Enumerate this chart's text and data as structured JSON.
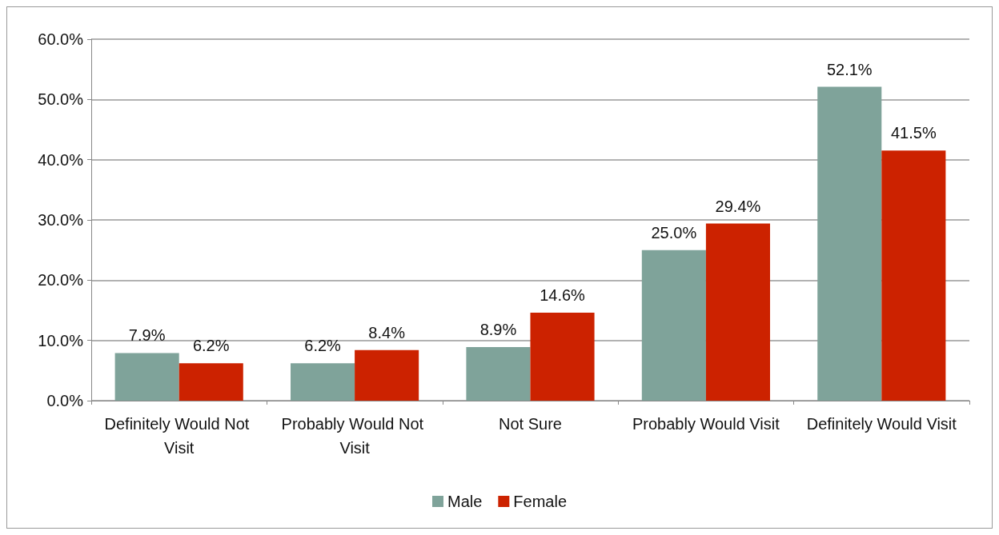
{
  "chart_data": {
    "type": "bar",
    "categories": [
      "Definitely Would Not Visit",
      "Probably Would Not Visit",
      "Not Sure",
      "Probably Would Visit",
      "Definitely Would Visit"
    ],
    "series": [
      {
        "name": "Male",
        "color": "#7fa39a",
        "values": [
          7.9,
          6.2,
          8.9,
          25.0,
          52.1
        ],
        "value_labels": [
          "7.9%",
          "6.2%",
          "8.9%",
          "25.0%",
          "52.1%"
        ]
      },
      {
        "name": "Female",
        "color": "#cc2200",
        "values": [
          6.2,
          8.4,
          14.6,
          29.4,
          41.5
        ],
        "value_labels": [
          "6.2%",
          "8.4%",
          "14.6%",
          "29.4%",
          "41.5%"
        ]
      }
    ],
    "ylim": [
      0,
      60
    ],
    "yticks": [
      {
        "value": 0,
        "label": "0.0%"
      },
      {
        "value": 10,
        "label": "10.0%"
      },
      {
        "value": 20,
        "label": "20.0%"
      },
      {
        "value": 30,
        "label": "30.0%"
      },
      {
        "value": 40,
        "label": "40.0%"
      },
      {
        "value": 50,
        "label": "50.0%"
      },
      {
        "value": 60,
        "label": "60.0%"
      }
    ],
    "grid": "y",
    "legend": "bottom"
  }
}
